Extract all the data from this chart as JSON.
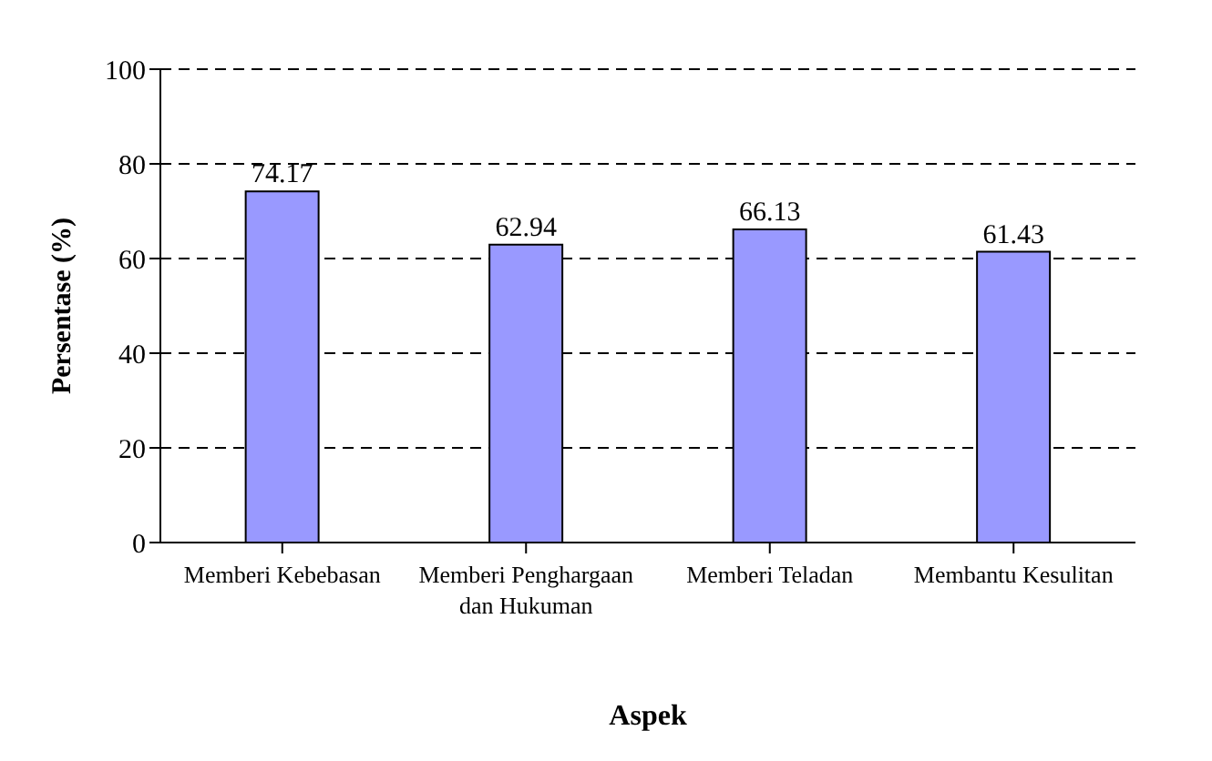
{
  "chart_data": {
    "type": "bar",
    "xlabel": "Aspek",
    "ylabel": "Persentase (%)",
    "categories": [
      "Memberi Kebebasan",
      "Memberi Penghargaan dan Hukuman",
      "Memberi Teladan",
      "Membantu Kesulitan"
    ],
    "values": [
      74.17,
      62.94,
      66.13,
      61.43
    ],
    "color": "#9999ff",
    "ylim": [
      0,
      100
    ],
    "yticks": [
      0,
      20,
      40,
      60,
      80,
      100
    ],
    "grid": "y",
    "data_labels": true
  }
}
